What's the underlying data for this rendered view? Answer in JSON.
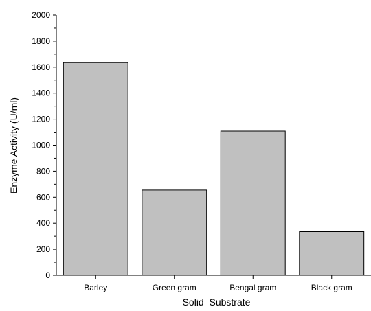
{
  "chart_data": {
    "type": "bar",
    "title": "",
    "xlabel": "Solid  Substrate",
    "ylabel": "Enzyme Activity (U/ml)",
    "categories": [
      "Barley",
      "Green gram",
      "Bengal gram",
      "Black gram"
    ],
    "values": [
      1635,
      655,
      1108,
      335
    ],
    "ylim": [
      0,
      2000
    ],
    "yticks": [
      0,
      200,
      400,
      600,
      800,
      1000,
      1200,
      1400,
      1600,
      1800,
      2000
    ],
    "grid": false,
    "legend": "none",
    "bar_color": "#c0c0c0",
    "edge_color": "#000000"
  }
}
